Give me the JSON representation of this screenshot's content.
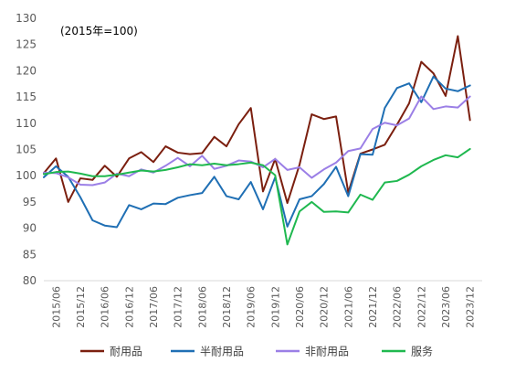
{
  "chart_data": {
    "type": "line",
    "annotation": "(2015年=100)",
    "ylim": [
      80,
      130
    ],
    "yticks": [
      80,
      85,
      90,
      95,
      100,
      105,
      110,
      115,
      120,
      125,
      130
    ],
    "grid": false,
    "legend_position": "bottom",
    "x_tick_labels": [
      "2015/06",
      "2015/12",
      "2016/06",
      "2016/12",
      "2017/06",
      "2017/12",
      "2018/06",
      "2018/12",
      "2019/06",
      "2019/12",
      "2020/06",
      "2020/12",
      "2021/06",
      "2021/12",
      "2022/06",
      "2022/12",
      "2023/06",
      "2023/12"
    ],
    "x": [
      "2015/03",
      "2015/06",
      "2015/09",
      "2015/12",
      "2016/03",
      "2016/06",
      "2016/09",
      "2016/12",
      "2017/03",
      "2017/06",
      "2017/09",
      "2017/12",
      "2018/03",
      "2018/06",
      "2018/09",
      "2018/12",
      "2019/03",
      "2019/06",
      "2019/09",
      "2019/12",
      "2020/03",
      "2020/06",
      "2020/09",
      "2020/12",
      "2021/03",
      "2021/06",
      "2021/09",
      "2021/12",
      "2022/03",
      "2022/06",
      "2022/09",
      "2022/12",
      "2023/03",
      "2023/06",
      "2023/09",
      "2023/12",
      "2024/03"
    ],
    "series": [
      {
        "name": "耐用品",
        "color": "#7b1f0f",
        "values": [
          100.5,
          103.3,
          95.0,
          99.5,
          99.2,
          101.9,
          99.8,
          103.3,
          104.5,
          102.6,
          105.6,
          104.4,
          104.1,
          104.3,
          107.4,
          105.6,
          109.8,
          112.9,
          97.0,
          103.2,
          94.8,
          102.1,
          111.7,
          110.8,
          111.3,
          96.8,
          104.2,
          105.0,
          105.9,
          109.7,
          113.8,
          121.7,
          119.5,
          115.2,
          126.6,
          110.6,
          null
        ]
      },
      {
        "name": "半耐用品",
        "color": "#1f6fb4",
        "values": [
          99.7,
          101.8,
          99.8,
          95.9,
          91.5,
          90.5,
          90.2,
          94.4,
          93.6,
          94.7,
          94.6,
          95.8,
          96.3,
          96.7,
          99.8,
          96.1,
          95.5,
          98.8,
          93.6,
          99.7,
          90.3,
          95.5,
          96.1,
          98.4,
          101.7,
          96.1,
          104.1,
          104.0,
          112.9,
          116.7,
          117.6,
          114.0,
          118.9,
          116.6,
          116.1,
          117.2,
          null
        ]
      },
      {
        "name": "非耐用品",
        "color": "#9b7fe6",
        "values": [
          100.6,
          100.5,
          99.7,
          98.3,
          98.2,
          98.7,
          100.4,
          99.9,
          101.2,
          100.6,
          101.9,
          103.4,
          101.8,
          103.8,
          101.3,
          101.9,
          102.9,
          102.7,
          101.6,
          103.2,
          101.1,
          101.6,
          99.6,
          101.2,
          102.5,
          104.7,
          105.2,
          108.9,
          110.1,
          109.6,
          110.9,
          115.1,
          112.7,
          113.2,
          113.0,
          115.1,
          null
        ]
      },
      {
        "name": "服务",
        "color": "#1fb84f",
        "values": [
          100.3,
          100.7,
          100.8,
          100.4,
          99.9,
          99.9,
          100.2,
          100.6,
          101.0,
          100.8,
          101.1,
          101.6,
          102.2,
          102.0,
          102.3,
          102.0,
          102.2,
          102.5,
          102.0,
          100.1,
          86.9,
          93.2,
          95.0,
          93.1,
          93.2,
          93.0,
          96.4,
          95.4,
          98.7,
          99.0,
          100.2,
          101.8,
          103.0,
          103.9,
          103.5,
          105.1,
          null
        ]
      }
    ]
  }
}
